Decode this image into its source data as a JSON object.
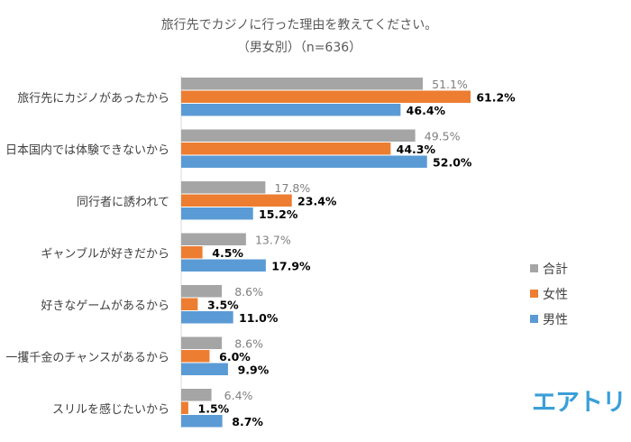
{
  "chart_data": {
    "type": "bar",
    "orientation": "horizontal",
    "title": "旅行先でカジノに行った理由を教えてください。",
    "subtitle": "（男女別）（n=636）",
    "categories": [
      "旅行先にカジノがあったから",
      "日本国内では体験できないから",
      "同行者に誘われて",
      "ギャンブルが好きだから",
      "好きなゲームがあるから",
      "一攫千金のチャンスがあるから",
      "スリルを感じたいから"
    ],
    "series": [
      {
        "name": "合計",
        "color": "#a5a5a5",
        "values": [
          51.1,
          49.5,
          17.8,
          13.7,
          8.6,
          8.6,
          6.4
        ]
      },
      {
        "name": "女性",
        "color": "#ed7d31",
        "values": [
          61.2,
          44.3,
          23.4,
          4.5,
          3.5,
          6.0,
          1.5
        ]
      },
      {
        "name": "男性",
        "color": "#5b9bd5",
        "values": [
          46.4,
          52.0,
          15.2,
          17.9,
          11.0,
          9.9,
          8.7
        ]
      }
    ],
    "value_suffix": "%",
    "xlim": [
      0,
      70
    ],
    "legend_position": "right",
    "grid": false
  },
  "brand": {
    "logo_text": "エアトリ"
  }
}
